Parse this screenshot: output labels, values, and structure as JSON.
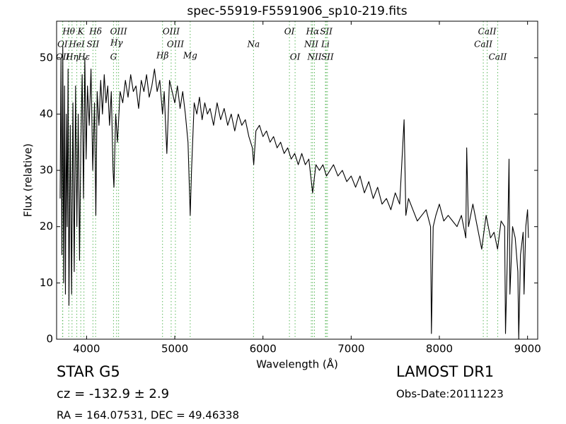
{
  "chart_data": {
    "type": "line",
    "title": "spec-55919-F5591906_sp10-219.fits",
    "x_label": "Wavelength (Å)",
    "y_label": "Flux (relative)",
    "xlim": [
      3660,
      9115
    ],
    "ylim": [
      0,
      56.5
    ],
    "xticks": [
      4000,
      5000,
      6000,
      7000,
      8000,
      9000
    ],
    "yticks": [
      0,
      10,
      20,
      30,
      40,
      50
    ],
    "series": [
      {
        "name": "flux",
        "color": "#000000",
        "x": [
          3700,
          3710,
          3720,
          3730,
          3740,
          3750,
          3760,
          3770,
          3780,
          3790,
          3800,
          3815,
          3830,
          3845,
          3860,
          3875,
          3890,
          3905,
          3920,
          3935,
          3950,
          3965,
          3980,
          3995,
          4010,
          4030,
          4050,
          4070,
          4090,
          4105,
          4120,
          4140,
          4160,
          4180,
          4200,
          4220,
          4240,
          4260,
          4280,
          4300,
          4310,
          4330,
          4350,
          4380,
          4410,
          4440,
          4470,
          4500,
          4530,
          4560,
          4590,
          4620,
          4650,
          4680,
          4710,
          4740,
          4770,
          4800,
          4830,
          4861,
          4880,
          4910,
          4940,
          4970,
          5000,
          5030,
          5060,
          5090,
          5120,
          5150,
          5175,
          5190,
          5220,
          5250,
          5280,
          5310,
          5340,
          5370,
          5400,
          5440,
          5480,
          5520,
          5560,
          5600,
          5640,
          5680,
          5720,
          5760,
          5800,
          5840,
          5880,
          5895,
          5920,
          5960,
          6000,
          6040,
          6080,
          6120,
          6160,
          6200,
          6240,
          6280,
          6320,
          6360,
          6400,
          6440,
          6480,
          6520,
          6563,
          6600,
          6640,
          6680,
          6720,
          6760,
          6800,
          6850,
          6900,
          6950,
          7000,
          7050,
          7100,
          7150,
          7200,
          7250,
          7300,
          7350,
          7400,
          7450,
          7500,
          7550,
          7600,
          7620,
          7650,
          7700,
          7750,
          7800,
          7850,
          7900,
          7910,
          7930,
          7960,
          8000,
          8050,
          8100,
          8150,
          8200,
          8250,
          8300,
          8310,
          8330,
          8380,
          8430,
          8480,
          8530,
          8580,
          8620,
          8660,
          8700,
          8740,
          8750,
          8770,
          8790,
          8800,
          8830,
          8860,
          8890,
          8900,
          8920,
          8950,
          8960,
          8980,
          9000,
          9010
        ],
        "values": [
          25,
          50,
          15,
          52,
          10,
          45,
          8,
          40,
          20,
          48,
          6,
          38,
          8,
          42,
          12,
          45,
          20,
          40,
          14,
          35,
          47,
          25,
          50,
          32,
          45,
          38,
          48,
          30,
          42,
          22,
          44,
          38,
          46,
          40,
          47,
          42,
          45,
          38,
          44,
          30,
          27,
          40,
          35,
          44,
          42,
          46,
          43,
          47,
          44,
          45,
          41,
          46,
          44,
          47,
          43,
          45,
          48,
          44,
          46,
          40,
          44,
          33,
          46,
          44,
          42,
          45,
          41,
          44,
          40,
          35,
          22,
          30,
          42,
          40,
          43,
          39,
          42,
          40,
          41,
          38,
          42,
          39,
          41,
          38,
          40,
          37,
          40,
          38,
          39,
          36,
          34,
          31,
          37,
          38,
          36,
          37,
          35,
          36,
          34,
          35,
          33,
          34,
          32,
          33,
          31,
          33,
          31,
          32,
          26,
          31,
          30,
          31,
          29,
          30,
          31,
          29,
          30,
          28,
          29,
          27,
          29,
          26,
          28,
          25,
          27,
          24,
          25,
          23,
          26,
          24,
          39,
          22,
          25,
          23,
          21,
          22,
          23,
          20,
          1,
          20,
          22,
          24,
          21,
          22,
          21,
          20,
          22,
          18,
          34,
          20,
          24,
          20,
          16,
          22,
          18,
          19,
          16,
          21,
          20,
          1,
          14,
          32,
          8,
          20,
          18,
          12,
          0,
          15,
          19,
          8,
          20,
          23,
          18
        ]
      }
    ],
    "lines": [
      {
        "label": "Hθ",
        "x": 3798
      },
      {
        "label": "K",
        "x": 3934
      },
      {
        "label": "Hδ",
        "x": 4102
      },
      {
        "label": "OIII",
        "x": 4363
      },
      {
        "label": "OIII",
        "x": 4959
      },
      {
        "label": "OI",
        "x": 6300
      },
      {
        "label": "Hα",
        "x": 6563
      },
      {
        "label": "SII",
        "x": 6717
      },
      {
        "label": "OI",
        "x": 3727
      },
      {
        "label": "HeI",
        "x": 3889
      },
      {
        "label": "SII",
        "x": 4072
      },
      {
        "label": "Hγ",
        "x": 4340
      },
      {
        "label": "OIII",
        "x": 5007
      },
      {
        "label": "NII",
        "x": 6548
      },
      {
        "label": "Li",
        "x": 6708
      },
      {
        "label": "CaII",
        "x": 8542
      },
      {
        "label": "CaII",
        "x": 8498
      },
      {
        "label": "OII",
        "x": 3730
      },
      {
        "label": "Hη",
        "x": 3835
      },
      {
        "label": "Hε",
        "x": 3970
      },
      {
        "label": "G",
        "x": 4305
      },
      {
        "label": "Hβ",
        "x": 4861
      },
      {
        "label": "Mg",
        "x": 5175
      },
      {
        "label": "Na",
        "x": 5893
      },
      {
        "label": "OI",
        "x": 6364
      },
      {
        "label": "NII",
        "x": 6584
      },
      {
        "label": "SII",
        "x": 6731
      },
      {
        "label": "CaII",
        "x": 8662
      }
    ],
    "info": {
      "class": "STAR   G5",
      "cz": "cz = -132.9 ± 2.9",
      "coords": "RA = 164.07531, DEC = 49.46338",
      "survey": "LAMOST DR1",
      "date": "Obs-Date:20111223"
    }
  }
}
